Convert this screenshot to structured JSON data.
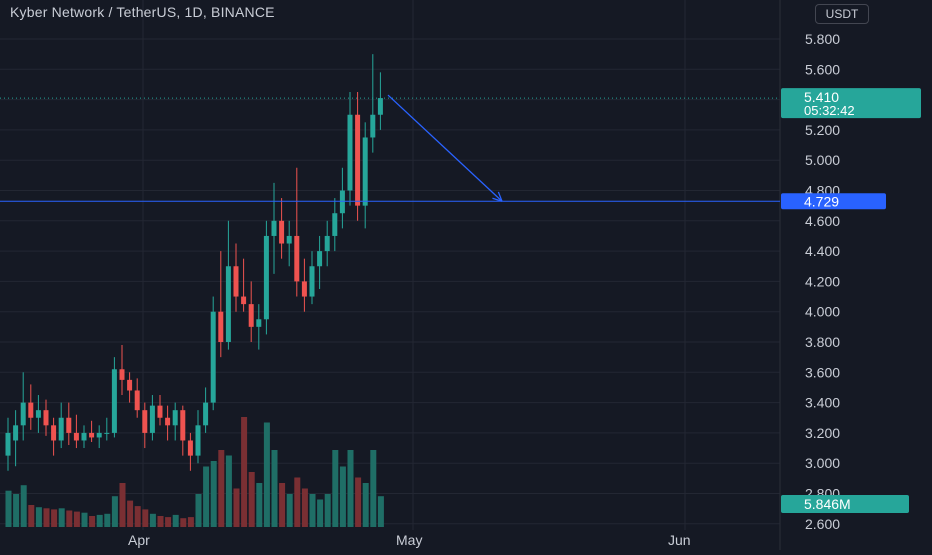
{
  "header": {
    "title": "Kyber Network / TetherUS, 1D, BINANCE",
    "currency_button": "USDT"
  },
  "colors": {
    "background": "#151924",
    "grid": "#232733",
    "up": "#26a69a",
    "down": "#ef5350",
    "up_volume": "#1f6e66",
    "down_volume": "#7a2f33",
    "price_line": "#26a69a",
    "level_line": "#2962ff",
    "arrow": "#2962ff",
    "axis_text": "#c9cdd6"
  },
  "price_axis": {
    "ticks": [
      "5.800",
      "5.600",
      "5.400",
      "5.200",
      "5.000",
      "4.800",
      "4.600",
      "4.400",
      "4.200",
      "4.000",
      "3.800",
      "3.600",
      "3.400",
      "3.200",
      "3.000",
      "2.800",
      "2.600"
    ],
    "partial_top_tick": "6"
  },
  "time_axis": {
    "ticks": [
      "Apr",
      "May",
      "Jun"
    ]
  },
  "labels": {
    "last_price": "5.410",
    "countdown": "05:32:42",
    "level_price": "4.729",
    "last_volume": "5.846M"
  },
  "chart_data": {
    "type": "candlestick",
    "symbol": "Kyber Network / TetherUS",
    "interval": "1D",
    "exchange": "BINANCE",
    "currency": "USDT",
    "y_range": [
      2.55,
      6.0
    ],
    "x_ticks": [
      "Apr",
      "May",
      "Jun"
    ],
    "horizontal_level": 4.729,
    "last_price": 5.41,
    "last_volume": "5.846M",
    "arrow": {
      "from": {
        "bar_offset": 1,
        "price": 5.43
      },
      "to": {
        "bar_offset": 16,
        "price": 4.729
      }
    },
    "candles": [
      {
        "o": 3.05,
        "h": 3.3,
        "l": 2.95,
        "c": 3.2,
        "v": 0.33
      },
      {
        "o": 3.15,
        "h": 3.35,
        "l": 2.98,
        "c": 3.25,
        "v": 0.3
      },
      {
        "o": 3.25,
        "h": 3.6,
        "l": 3.15,
        "c": 3.4,
        "v": 0.38
      },
      {
        "o": 3.4,
        "h": 3.52,
        "l": 3.22,
        "c": 3.3,
        "v": 0.2
      },
      {
        "o": 3.3,
        "h": 3.45,
        "l": 3.2,
        "c": 3.35,
        "v": 0.18
      },
      {
        "o": 3.35,
        "h": 3.42,
        "l": 3.18,
        "c": 3.25,
        "v": 0.17
      },
      {
        "o": 3.25,
        "h": 3.3,
        "l": 3.05,
        "c": 3.15,
        "v": 0.16
      },
      {
        "o": 3.15,
        "h": 3.4,
        "l": 3.1,
        "c": 3.3,
        "v": 0.17
      },
      {
        "o": 3.3,
        "h": 3.4,
        "l": 3.12,
        "c": 3.2,
        "v": 0.15
      },
      {
        "o": 3.2,
        "h": 3.32,
        "l": 3.1,
        "c": 3.15,
        "v": 0.14
      },
      {
        "o": 3.15,
        "h": 3.25,
        "l": 3.1,
        "c": 3.2,
        "v": 0.13
      },
      {
        "o": 3.2,
        "h": 3.28,
        "l": 3.14,
        "c": 3.17,
        "v": 0.1
      },
      {
        "o": 3.17,
        "h": 3.25,
        "l": 3.1,
        "c": 3.2,
        "v": 0.11
      },
      {
        "o": 3.2,
        "h": 3.3,
        "l": 3.15,
        "c": 3.2,
        "v": 0.12
      },
      {
        "o": 3.2,
        "h": 3.7,
        "l": 3.17,
        "c": 3.62,
        "v": 0.28
      },
      {
        "o": 3.62,
        "h": 3.78,
        "l": 3.45,
        "c": 3.55,
        "v": 0.4
      },
      {
        "o": 3.55,
        "h": 3.6,
        "l": 3.4,
        "c": 3.48,
        "v": 0.24
      },
      {
        "o": 3.48,
        "h": 3.56,
        "l": 3.3,
        "c": 3.35,
        "v": 0.19
      },
      {
        "o": 3.35,
        "h": 3.4,
        "l": 3.1,
        "c": 3.2,
        "v": 0.16
      },
      {
        "o": 3.2,
        "h": 3.45,
        "l": 3.15,
        "c": 3.38,
        "v": 0.12
      },
      {
        "o": 3.38,
        "h": 3.45,
        "l": 3.25,
        "c": 3.3,
        "v": 0.1
      },
      {
        "o": 3.3,
        "h": 3.38,
        "l": 3.15,
        "c": 3.25,
        "v": 0.09
      },
      {
        "o": 3.25,
        "h": 3.4,
        "l": 3.15,
        "c": 3.35,
        "v": 0.11
      },
      {
        "o": 3.35,
        "h": 3.38,
        "l": 3.05,
        "c": 3.15,
        "v": 0.08
      },
      {
        "o": 3.15,
        "h": 3.2,
        "l": 2.95,
        "c": 3.05,
        "v": 0.09
      },
      {
        "o": 3.05,
        "h": 3.35,
        "l": 3.0,
        "c": 3.25,
        "v": 0.3
      },
      {
        "o": 3.25,
        "h": 3.5,
        "l": 3.2,
        "c": 3.4,
        "v": 0.55
      },
      {
        "o": 3.4,
        "h": 4.1,
        "l": 3.35,
        "c": 4.0,
        "v": 0.6
      },
      {
        "o": 4.0,
        "h": 4.4,
        "l": 3.7,
        "c": 3.8,
        "v": 0.7
      },
      {
        "o": 3.8,
        "h": 4.6,
        "l": 3.75,
        "c": 4.3,
        "v": 0.65
      },
      {
        "o": 4.3,
        "h": 4.45,
        "l": 4.0,
        "c": 4.1,
        "v": 0.35
      },
      {
        "o": 4.1,
        "h": 4.35,
        "l": 4.0,
        "c": 4.05,
        "v": 1.0
      },
      {
        "o": 4.05,
        "h": 4.2,
        "l": 3.8,
        "c": 3.9,
        "v": 0.5
      },
      {
        "o": 3.9,
        "h": 4.05,
        "l": 3.75,
        "c": 3.95,
        "v": 0.4
      },
      {
        "o": 3.95,
        "h": 4.6,
        "l": 3.85,
        "c": 4.5,
        "v": 0.95
      },
      {
        "o": 4.5,
        "h": 4.85,
        "l": 4.25,
        "c": 4.6,
        "v": 0.7
      },
      {
        "o": 4.6,
        "h": 4.75,
        "l": 4.35,
        "c": 4.45,
        "v": 0.4
      },
      {
        "o": 4.45,
        "h": 4.6,
        "l": 4.3,
        "c": 4.5,
        "v": 0.3
      },
      {
        "o": 4.5,
        "h": 4.95,
        "l": 4.1,
        "c": 4.2,
        "v": 0.45
      },
      {
        "o": 4.2,
        "h": 4.35,
        "l": 4.0,
        "c": 4.1,
        "v": 0.35
      },
      {
        "o": 4.1,
        "h": 4.4,
        "l": 4.05,
        "c": 4.3,
        "v": 0.3
      },
      {
        "o": 4.3,
        "h": 4.5,
        "l": 4.15,
        "c": 4.4,
        "v": 0.25
      },
      {
        "o": 4.4,
        "h": 4.6,
        "l": 4.3,
        "c": 4.5,
        "v": 0.3
      },
      {
        "o": 4.5,
        "h": 4.75,
        "l": 4.4,
        "c": 4.65,
        "v": 0.7
      },
      {
        "o": 4.65,
        "h": 4.95,
        "l": 4.55,
        "c": 4.8,
        "v": 0.55
      },
      {
        "o": 4.8,
        "h": 5.45,
        "l": 4.7,
        "c": 5.3,
        "v": 0.7
      },
      {
        "o": 5.3,
        "h": 5.45,
        "l": 4.6,
        "c": 4.7,
        "v": 0.45
      },
      {
        "o": 4.7,
        "h": 5.25,
        "l": 4.55,
        "c": 5.15,
        "v": 0.4
      },
      {
        "o": 5.15,
        "h": 5.7,
        "l": 5.05,
        "c": 5.3,
        "v": 0.7
      },
      {
        "o": 5.3,
        "h": 5.58,
        "l": 5.2,
        "c": 5.41,
        "v": 0.28
      }
    ]
  }
}
